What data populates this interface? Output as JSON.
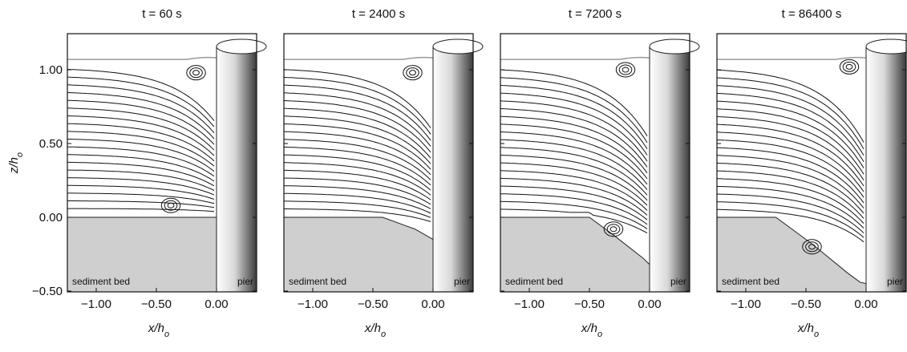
{
  "y_axis": {
    "label": "z/h",
    "label_sub": "o",
    "ticks": [
      {
        "value": 1,
        "label": "1.00"
      },
      {
        "value": 0.5,
        "label": "0.50"
      },
      {
        "value": 0,
        "label": "0.00"
      },
      {
        "value": -0.5,
        "label": "−0.50"
      }
    ]
  },
  "x_axis": {
    "label": "x/h",
    "label_sub": "o",
    "ticks": [
      {
        "value": -1,
        "label": "−1.00"
      },
      {
        "value": -0.5,
        "label": "−0.50"
      },
      {
        "value": 0,
        "label": "0.00"
      }
    ]
  },
  "bed_label": "sediment bed",
  "pier_label": "pier",
  "panels": [
    {
      "title": "t = 60 s"
    },
    {
      "title": "t = 2400 s"
    },
    {
      "title": "t = 7200 s"
    },
    {
      "title": "t = 86400 s"
    }
  ]
}
